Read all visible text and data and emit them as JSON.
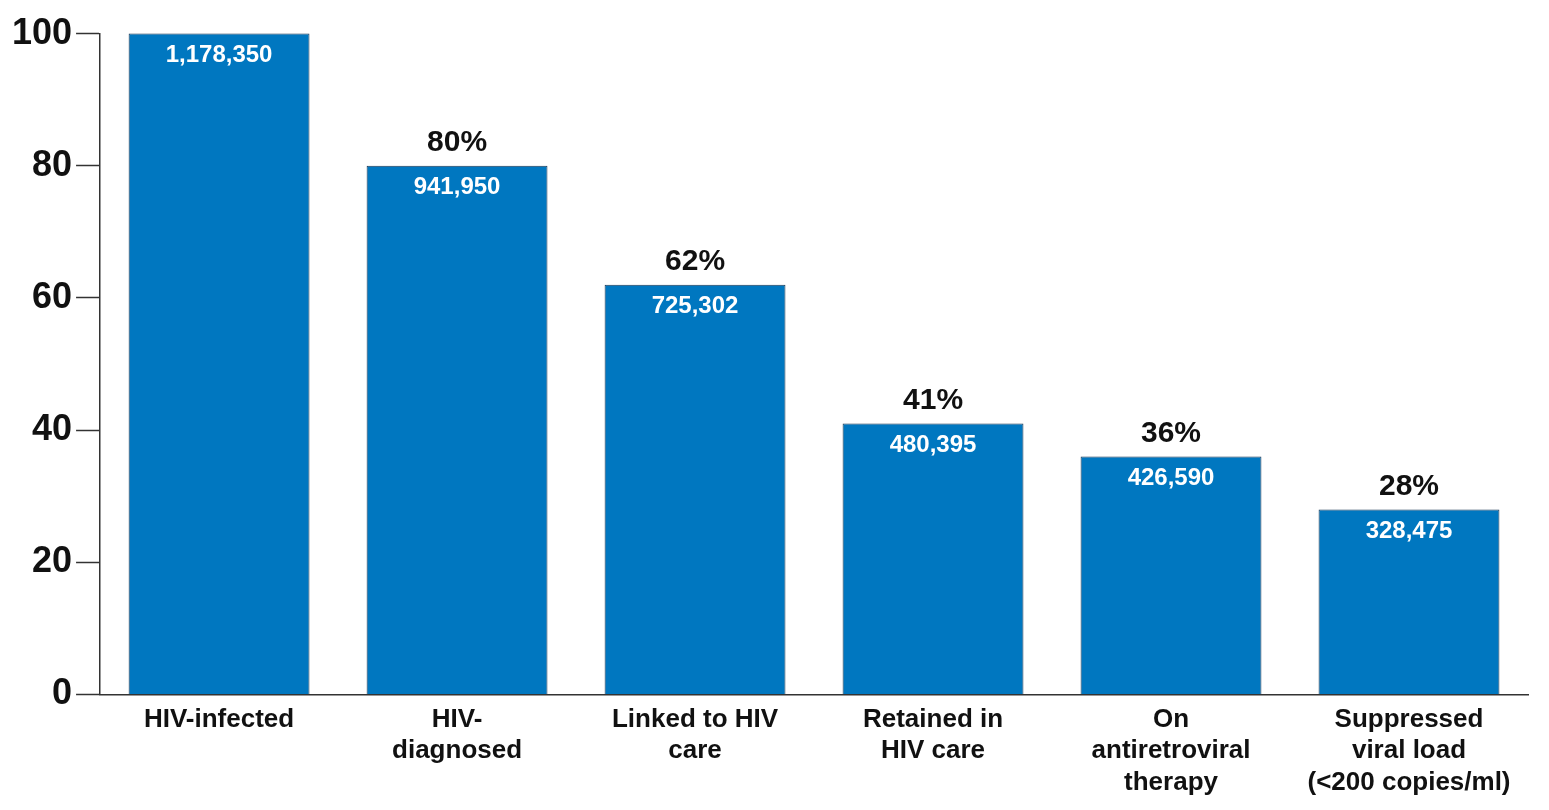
{
  "chart_data": {
    "type": "bar",
    "categories": [
      "HIV-infected",
      "HIV-\ndiagnosed",
      "Linked to HIV\ncare",
      "Retained in\nHIV care",
      "On\nantiretroviral\ntherapy",
      "Suppressed\nviral load\n(<200 copies/ml)"
    ],
    "values": [
      100,
      80,
      62,
      41,
      36,
      28
    ],
    "color": "#0077c0",
    "value_labels": [
      null,
      "80%",
      "62%",
      "41%",
      "36%",
      "28%"
    ],
    "annotations": [
      {
        "text": "1,178,350",
        "x": "HIV-infected",
        "y": 100
      },
      {
        "text": "941,950",
        "x": "HIV-\ndiagnosed",
        "y": 80
      },
      {
        "text": "725,302",
        "x": "Linked to HIV\ncare",
        "y": 62
      },
      {
        "text": "480,395",
        "x": "Retained in\nHIV care",
        "y": 41
      },
      {
        "text": "426,590",
        "x": "On\nantiretroviral\ntherapy",
        "y": 36
      },
      {
        "text": "328,475",
        "x": "Suppressed\nviral load\n(<200 copies/ml)",
        "y": 28
      }
    ],
    "ylim": [
      0,
      100
    ],
    "yticks": [
      0,
      20,
      40,
      60,
      80,
      100
    ],
    "grid": false,
    "legend": false
  }
}
